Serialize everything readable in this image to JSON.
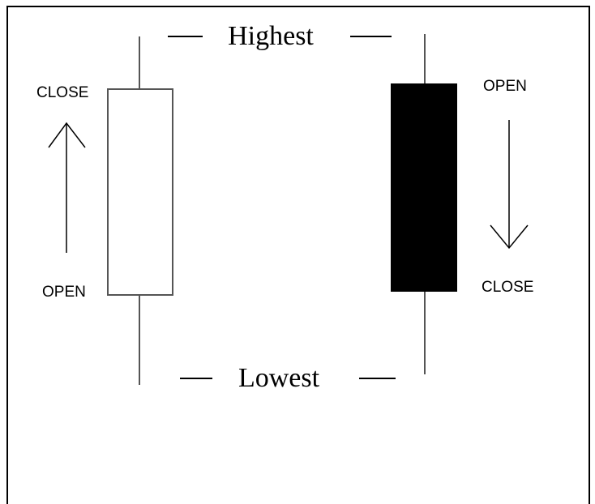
{
  "highest": "Highest",
  "lowest": "Lowest",
  "candles": [
    {
      "top_label": "CLOSE",
      "bottom_label": "OPEN"
    },
    {
      "top_label": "OPEN",
      "bottom_label": "CLOSE"
    }
  ]
}
